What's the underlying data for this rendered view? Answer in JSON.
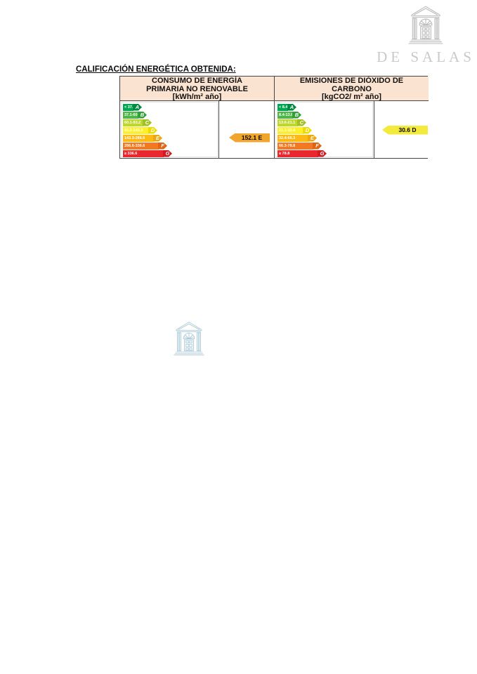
{
  "brand": {
    "name": "DE SALAS"
  },
  "section": {
    "title": "CALIFICACIÓN ENERGÉTICA OBTENIDA:"
  },
  "colors": {
    "header_bg": "#fae3d0",
    "table_border": "#454545"
  },
  "scales": [
    {
      "id": "consumo-energia",
      "header_lines": [
        "CONSUMO DE ENERGÍA",
        "PRIMARIA NO RENOVABLE",
        "[kWh/m² año]"
      ],
      "bands": [
        {
          "range": "< 37.1",
          "letter": "A",
          "color": "#00a651",
          "letter_color": "#008a42"
        },
        {
          "range": "37.1-60.1",
          "letter": "B",
          "color": "#4db748",
          "letter_color": "#33a037"
        },
        {
          "range": "60.1-93.2",
          "letter": "C",
          "color": "#bed630",
          "letter_color": "#a2c021"
        },
        {
          "range": "93.2-143.3",
          "letter": "D",
          "color": "#fdf02a",
          "letter_color": "#ecdc00"
        },
        {
          "range": "143.3-286.6",
          "letter": "E",
          "color": "#fbba16",
          "letter_color": "#f0a70e"
        },
        {
          "range": "286.6-336.6",
          "letter": "F",
          "color": "#f3781f",
          "letter_color": "#e26314"
        },
        {
          "range": "≥ 336.6",
          "letter": "G",
          "color": "#e9272e",
          "letter_color": "#d31922"
        }
      ],
      "value": {
        "label": "152.1 E",
        "band_letter": "E",
        "color": "#f0a62c"
      }
    },
    {
      "id": "emisiones-co2",
      "header_lines": [
        "EMISIONES DE DIÓXIDO DE",
        "CARBONO",
        "[kgCO2/ m² año]"
      ],
      "bands": [
        {
          "range": "< 8.4",
          "letter": "A",
          "color": "#00a651",
          "letter_color": "#008a42"
        },
        {
          "range": "8.4-13.6",
          "letter": "B",
          "color": "#4db748",
          "letter_color": "#33a037"
        },
        {
          "range": "13.6-21.1",
          "letter": "C",
          "color": "#bed630",
          "letter_color": "#a2c021"
        },
        {
          "range": "21.1-32.4",
          "letter": "D",
          "color": "#fdf02a",
          "letter_color": "#ecdc00"
        },
        {
          "range": "32.4-66.3",
          "letter": "E",
          "color": "#fbba16",
          "letter_color": "#f0a70e"
        },
        {
          "range": "66.3-78.8",
          "letter": "F",
          "color": "#f3781f",
          "letter_color": "#e26314"
        },
        {
          "range": "≥ 78.8",
          "letter": "G",
          "color": "#e9272e",
          "letter_color": "#d31922"
        }
      ],
      "value": {
        "label": "30.6 D",
        "band_letter": "D",
        "color": "#f4ea3b"
      }
    }
  ]
}
